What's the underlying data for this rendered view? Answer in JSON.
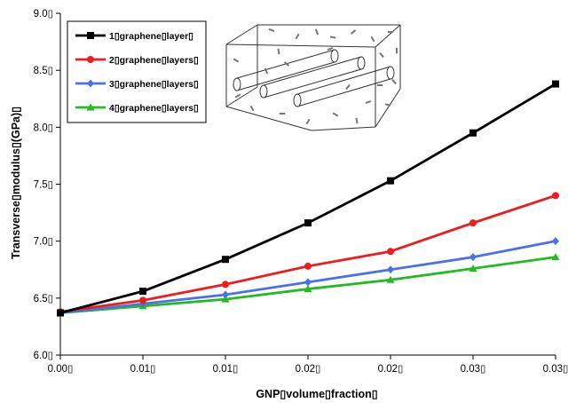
{
  "chart_data": {
    "type": "line",
    "title": "",
    "xlabel": "GNP▯volume▯fraction▯",
    "ylabel": "Transverse▯modulus▯(GPa)▯",
    "x_tick_labels": [
      "0.00▯",
      "0.01▯",
      "0.01▯",
      "0.02▯",
      "0.02▯",
      "0.03▯",
      "0.03▯"
    ],
    "y_tick_labels": [
      "6.0▯",
      "6.5▯",
      "7.0▯",
      "7.5▯",
      "8.0▯",
      "8.5▯",
      "9.0▯"
    ],
    "x": [
      0.0,
      0.005,
      0.01,
      0.015,
      0.02,
      0.025,
      0.03
    ],
    "xlim": [
      0.0,
      0.03
    ],
    "ylim": [
      6.0,
      9.0
    ],
    "grid": false,
    "legend_position": "top-left",
    "series": [
      {
        "name": "1▯graphene▯layer▯",
        "color": "#000000",
        "marker": "square",
        "values": [
          6.37,
          6.56,
          6.84,
          7.16,
          7.53,
          7.95,
          8.38
        ]
      },
      {
        "name": "2▯graphene▯layers▯",
        "color": "#ee1c1c",
        "marker": "circle",
        "values": [
          6.38,
          6.48,
          6.62,
          6.78,
          6.91,
          7.16,
          7.4
        ]
      },
      {
        "name": "3▯graphene▯layers▯",
        "color": "#4a72e8",
        "marker": "diamond",
        "values": [
          6.37,
          6.45,
          6.53,
          6.64,
          6.75,
          6.86,
          7.0
        ]
      },
      {
        "name": "4▯graphene▯layers▯",
        "color": "#22bb22",
        "marker": "triangle",
        "values": [
          6.37,
          6.43,
          6.49,
          6.58,
          6.66,
          6.76,
          6.86
        ]
      }
    ]
  }
}
